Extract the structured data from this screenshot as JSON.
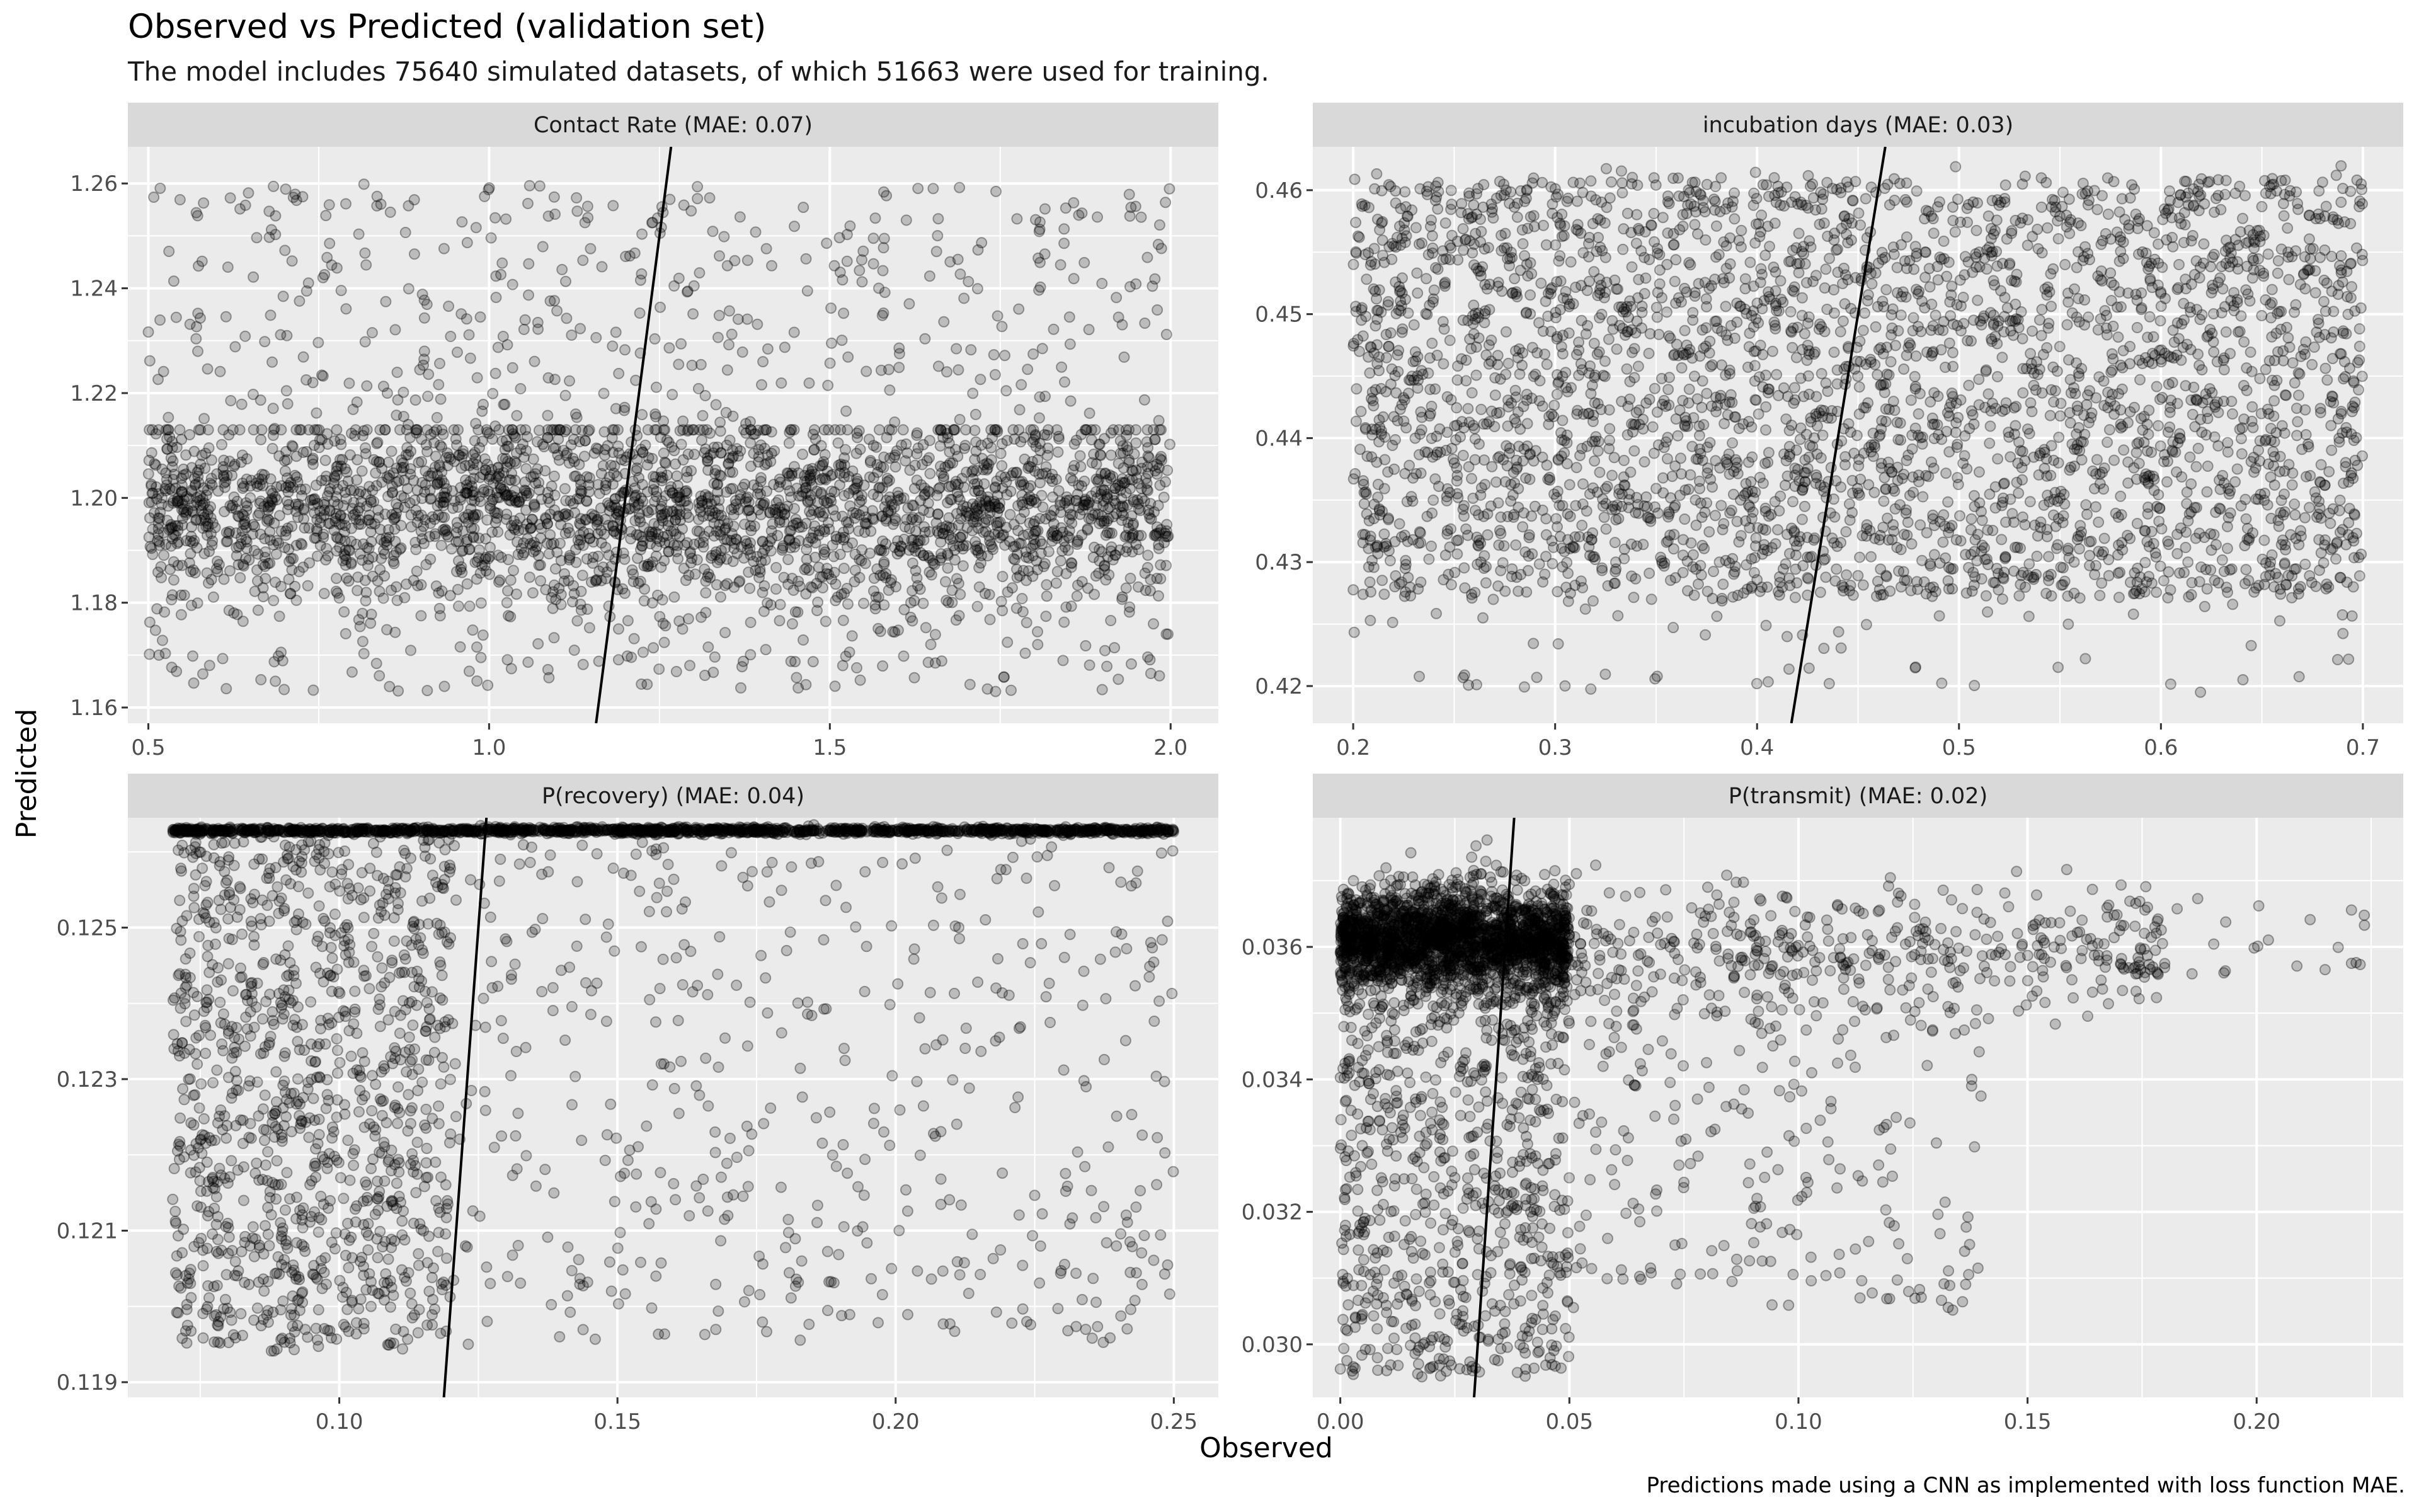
{
  "figure": {
    "title": "Observed vs Predicted (validation set)",
    "subtitle": "The model includes 75640 simulated datasets, of which 51663 were used for training.",
    "caption": "Predictions made using a CNN as implemented with loss function MAE.",
    "xlabel": "Observed",
    "ylabel": "Predicted"
  },
  "colors": {
    "panel_background": "#ebebeb",
    "strip_background": "#d9d9d9",
    "grid": "#ffffff",
    "points": "#000000",
    "identity_line": "#000000"
  },
  "chart_data": [
    {
      "type": "scatter",
      "facet": "Contact Rate (MAE: 0.07)",
      "xlim": [
        0.47,
        2.07
      ],
      "ylim": [
        1.157,
        1.267
      ],
      "x_ticks": [
        0.5,
        1.0,
        1.5,
        2.0
      ],
      "x_tick_labels": [
        "0.5",
        "1.0",
        "1.5",
        "2.0"
      ],
      "y_ticks": [
        1.16,
        1.18,
        1.2,
        1.22,
        1.24,
        1.26
      ],
      "y_tick_labels": [
        "1.16",
        "1.18",
        "1.20",
        "1.22",
        "1.24",
        "1.26"
      ],
      "identity_line": true,
      "point_alpha": 0.2,
      "point_clusters": [
        {
          "x_range": [
            0.5,
            2.0
          ],
          "y_mean": 1.198,
          "y_sd": 0.009,
          "y_range": [
            1.163,
            1.213
          ],
          "count": 2400
        },
        {
          "x_range": [
            0.5,
            2.0
          ],
          "y_range": [
            1.163,
            1.26
          ],
          "count": 900
        }
      ]
    },
    {
      "type": "scatter",
      "facet": "incubation days (MAE: 0.03)",
      "xlim": [
        0.18,
        0.72
      ],
      "ylim": [
        0.417,
        0.4635
      ],
      "x_ticks": [
        0.2,
        0.3,
        0.4,
        0.5,
        0.6,
        0.7
      ],
      "x_tick_labels": [
        "0.2",
        "0.3",
        "0.4",
        "0.5",
        "0.6",
        "0.7"
      ],
      "y_ticks": [
        0.42,
        0.43,
        0.44,
        0.45,
        0.46
      ],
      "y_tick_labels": [
        "0.42",
        "0.43",
        "0.44",
        "0.45",
        "0.46"
      ],
      "identity_line": true,
      "point_alpha": 0.2,
      "point_clusters": [
        {
          "x_range": [
            0.2,
            0.7
          ],
          "y_range": [
            0.427,
            0.461
          ],
          "count": 3000
        },
        {
          "x_range": [
            0.2,
            0.7
          ],
          "y_range": [
            0.4195,
            0.462
          ],
          "count": 350
        }
      ]
    },
    {
      "type": "scatter",
      "facet": "P(recovery) (MAE: 0.04)",
      "xlim": [
        0.062,
        0.258
      ],
      "ylim": [
        0.1188,
        0.12645
      ],
      "x_ticks": [
        0.1,
        0.15,
        0.2,
        0.25
      ],
      "x_tick_labels": [
        "0.10",
        "0.15",
        "0.20",
        "0.25"
      ],
      "y_ticks": [
        0.119,
        0.121,
        0.123,
        0.125
      ],
      "y_tick_labels": [
        "0.119",
        "0.121",
        "0.123",
        "0.125"
      ],
      "identity_line": true,
      "point_alpha": 0.2,
      "point_clusters": [
        {
          "x_range": [
            0.07,
            0.25
          ],
          "y_mean": 0.12628,
          "y_sd": 2e-05,
          "count": 1600
        },
        {
          "x_range": [
            0.07,
            0.12
          ],
          "y_range": [
            0.1194,
            0.1262
          ],
          "count": 900
        },
        {
          "x_range": [
            0.07,
            0.25
          ],
          "y_range": [
            0.1195,
            0.1262
          ],
          "count": 700
        }
      ]
    },
    {
      "type": "scatter",
      "facet": "P(transmit) (MAE: 0.02)",
      "xlim": [
        -0.006,
        0.232
      ],
      "ylim": [
        0.0292,
        0.03795
      ],
      "x_ticks": [
        0.0,
        0.05,
        0.1,
        0.15,
        0.2
      ],
      "x_tick_labels": [
        "0.00",
        "0.05",
        "0.10",
        "0.15",
        "0.20"
      ],
      "y_ticks": [
        0.03,
        0.032,
        0.034,
        0.036
      ],
      "y_tick_labels": [
        "0.030",
        "0.032",
        "0.034",
        "0.036"
      ],
      "identity_line": true,
      "point_alpha": 0.2,
      "point_clusters": [
        {
          "x_range": [
            0.0,
            0.05
          ],
          "y_mean": 0.0361,
          "y_sd": 0.0004,
          "count": 2200
        },
        {
          "x_range": [
            0.0,
            0.05
          ],
          "y_range": [
            0.0295,
            0.0352
          ],
          "count": 700
        },
        {
          "x_range": [
            0.03,
            0.18
          ],
          "y_mean": 0.0359,
          "y_sd": 0.0005,
          "count": 500
        },
        {
          "x_range": [
            0.05,
            0.14
          ],
          "y_range": [
            0.0305,
            0.0352
          ],
          "count": 220
        },
        {
          "x_range": [
            0.15,
            0.225
          ],
          "y_range": [
            0.0355,
            0.0368
          ],
          "count": 40
        }
      ]
    }
  ]
}
